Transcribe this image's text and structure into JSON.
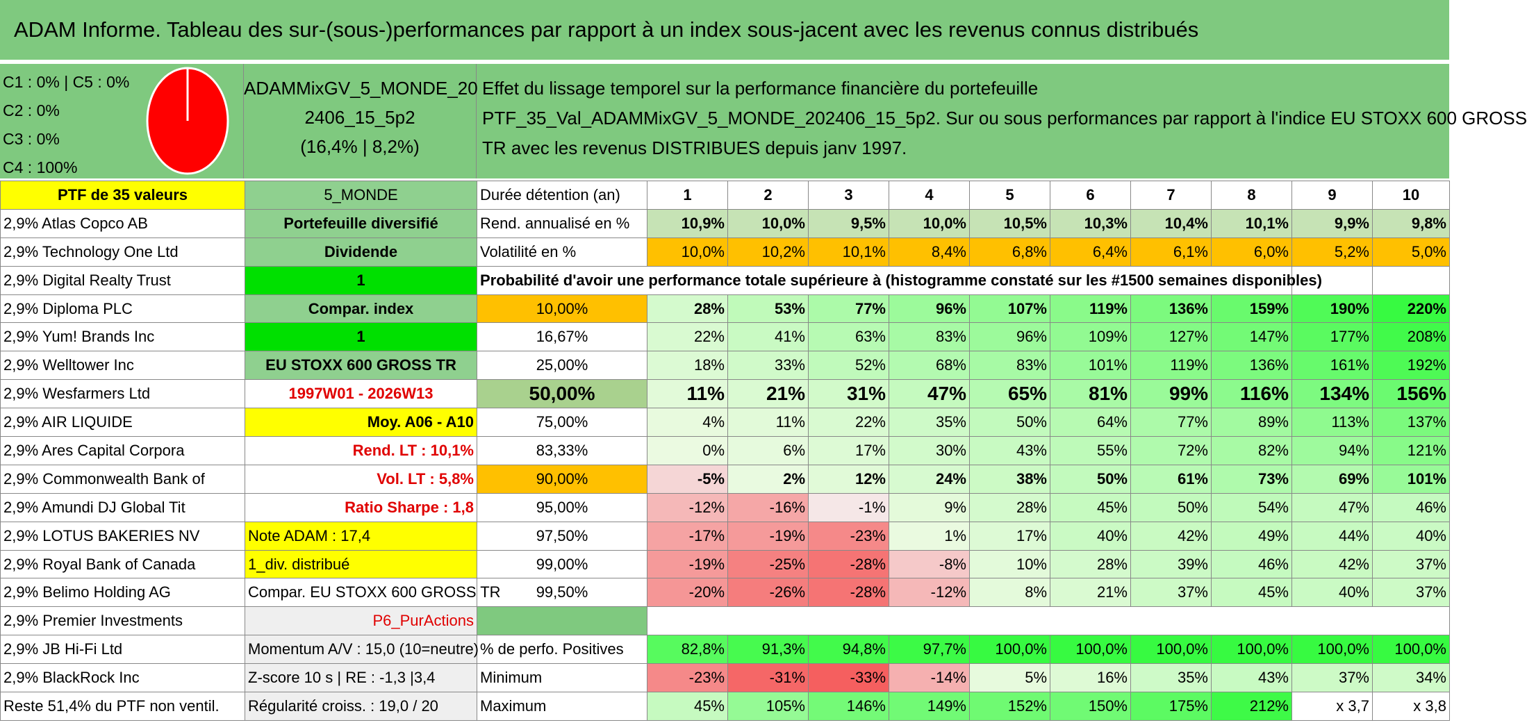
{
  "title": "ADAM Informe. Tableau des sur-(sous-)performances par rapport à un index sous-jacent avec les revenus connus distribués",
  "clusters": [
    {
      "label": "C1 : 0% | C5 : 0%"
    },
    {
      "label": "C2 : 0%"
    },
    {
      "label": "C3 : 0%"
    },
    {
      "label": "C4 : 100%"
    }
  ],
  "pie": {
    "color": "#ff0000"
  },
  "portfolio_name": [
    "ADAMMixGV_5_MONDE_20",
    "2406_15_5p2",
    "(16,4% | 8,2%)"
  ],
  "description": [
    "Effet du lissage temporel sur la performance financière du portefeuille",
    "PTF_35_Val_ADAMMixGV_5_MONDE_202406_15_5p2. Sur ou sous performances par rapport à l'indice EU STOXX 600 GROSS",
    "TR avec les revenus DISTRIBUES depuis janv 1997."
  ],
  "ptf_header": "PTF de 35 valeurs",
  "zone": "5_MONDE",
  "duration_label": "Durée détention (an)",
  "years": [
    "1",
    "2",
    "3",
    "4",
    "5",
    "6",
    "7",
    "8",
    "9",
    "10"
  ],
  "holdings": [
    "2,9% Atlas Copco AB",
    "2,9% Technology One Ltd",
    "2,9% Digital Realty Trust",
    "2,9% Diploma PLC",
    "2,9% Yum! Brands Inc",
    "2,9% Welltower Inc",
    "2,9% Wesfarmers Ltd",
    "2,9% AIR LIQUIDE",
    "2,9% Ares Capital Corpora",
    "2,9% Commonwealth Bank of",
    "2,9% Amundi DJ Global Tit",
    "2,9% LOTUS BAKERIES NV",
    "2,9% Royal Bank of Canada",
    "2,9% Belimo Holding AG",
    "2,9% Premier Investments",
    "2,9% JB Hi-Fi Ltd",
    "2,9% BlackRock Inc",
    "Reste 51,4% du PTF non ventil."
  ],
  "params": {
    "diversified": "Portefeuille diversifié",
    "dividend": "Dividende",
    "one_a": "1",
    "compar": "Compar. index",
    "one_b": "1",
    "index": "EU STOXX 600 GROSS TR",
    "period": "1997W01 - 2026W13",
    "moy": "Moy. A06 - A10",
    "rend_lt": "Rend. LT : 10,1%",
    "vol_lt": "Vol. LT : 5,8%",
    "sharpe": "Ratio Sharpe : 1,8",
    "note": "Note ADAM : 17,4",
    "div": "1_div. distribué",
    "compar_index": "Compar. EU STOXX 600 GROSS TR",
    "strategy": "P6_PurActions",
    "momentum": "Momentum A/V : 15,0 (10=neutre)",
    "zscore": "Z-score 10 s | RE : -1,3 |3,4",
    "regularity": "Régularité croiss. : 19,0 / 20"
  },
  "rend": {
    "label": "Rend. annualisé en %",
    "values": [
      "10,9%",
      "10,0%",
      "9,5%",
      "10,0%",
      "10,5%",
      "10,3%",
      "10,4%",
      "10,1%",
      "9,9%",
      "9,8%"
    ]
  },
  "vol": {
    "label": "Volatilité en %",
    "values": [
      "10,0%",
      "10,2%",
      "10,1%",
      "8,4%",
      "6,8%",
      "6,4%",
      "6,1%",
      "6,0%",
      "5,2%",
      "5,0%"
    ]
  },
  "proba_title": "Probabilité d'avoir une performance totale supérieure à (histogramme constaté sur les #1500 semaines disponibles)",
  "quantiles": [
    {
      "p": "10,00%",
      "values": [
        "28%",
        "53%",
        "77%",
        "96%",
        "107%",
        "119%",
        "136%",
        "159%",
        "190%",
        "220%"
      ]
    },
    {
      "p": "16,67%",
      "values": [
        "22%",
        "41%",
        "63%",
        "83%",
        "96%",
        "109%",
        "127%",
        "147%",
        "177%",
        "208%"
      ]
    },
    {
      "p": "25,00%",
      "values": [
        "18%",
        "33%",
        "52%",
        "68%",
        "83%",
        "101%",
        "119%",
        "136%",
        "161%",
        "192%"
      ]
    },
    {
      "p": "50,00%",
      "values": [
        "11%",
        "21%",
        "31%",
        "47%",
        "65%",
        "81%",
        "99%",
        "116%",
        "134%",
        "156%"
      ]
    },
    {
      "p": "75,00%",
      "values": [
        "4%",
        "11%",
        "22%",
        "35%",
        "50%",
        "64%",
        "77%",
        "89%",
        "113%",
        "137%"
      ]
    },
    {
      "p": "83,33%",
      "values": [
        "0%",
        "6%",
        "17%",
        "30%",
        "43%",
        "55%",
        "72%",
        "82%",
        "94%",
        "121%"
      ]
    },
    {
      "p": "90,00%",
      "values": [
        "-5%",
        "2%",
        "12%",
        "24%",
        "38%",
        "50%",
        "61%",
        "73%",
        "69%",
        "101%"
      ]
    },
    {
      "p": "95,00%",
      "values": [
        "-12%",
        "-16%",
        "-1%",
        "9%",
        "28%",
        "45%",
        "50%",
        "54%",
        "47%",
        "46%"
      ]
    },
    {
      "p": "97,50%",
      "values": [
        "-17%",
        "-19%",
        "-23%",
        "1%",
        "17%",
        "40%",
        "42%",
        "49%",
        "44%",
        "40%"
      ]
    },
    {
      "p": "99,00%",
      "values": [
        "-19%",
        "-25%",
        "-28%",
        "-8%",
        "10%",
        "28%",
        "39%",
        "46%",
        "42%",
        "37%"
      ]
    },
    {
      "p": "99,50%",
      "values": [
        "-20%",
        "-26%",
        "-28%",
        "-12%",
        "8%",
        "21%",
        "37%",
        "45%",
        "40%",
        "37%"
      ]
    }
  ],
  "positives": {
    "label": "% de perfo. Positives",
    "values": [
      "82,8%",
      "91,3%",
      "94,8%",
      "97,7%",
      "100,0%",
      "100,0%",
      "100,0%",
      "100,0%",
      "100,0%",
      "100,0%"
    ]
  },
  "minimum": {
    "label": "Minimum",
    "values": [
      "-23%",
      "-31%",
      "-33%",
      "-14%",
      "5%",
      "16%",
      "35%",
      "43%",
      "37%",
      "34%"
    ]
  },
  "maximum": {
    "label": "Maximum",
    "values": [
      "45%",
      "105%",
      "146%",
      "149%",
      "152%",
      "150%",
      "175%",
      "212%",
      "x 3,7",
      "x 3,8"
    ]
  }
}
